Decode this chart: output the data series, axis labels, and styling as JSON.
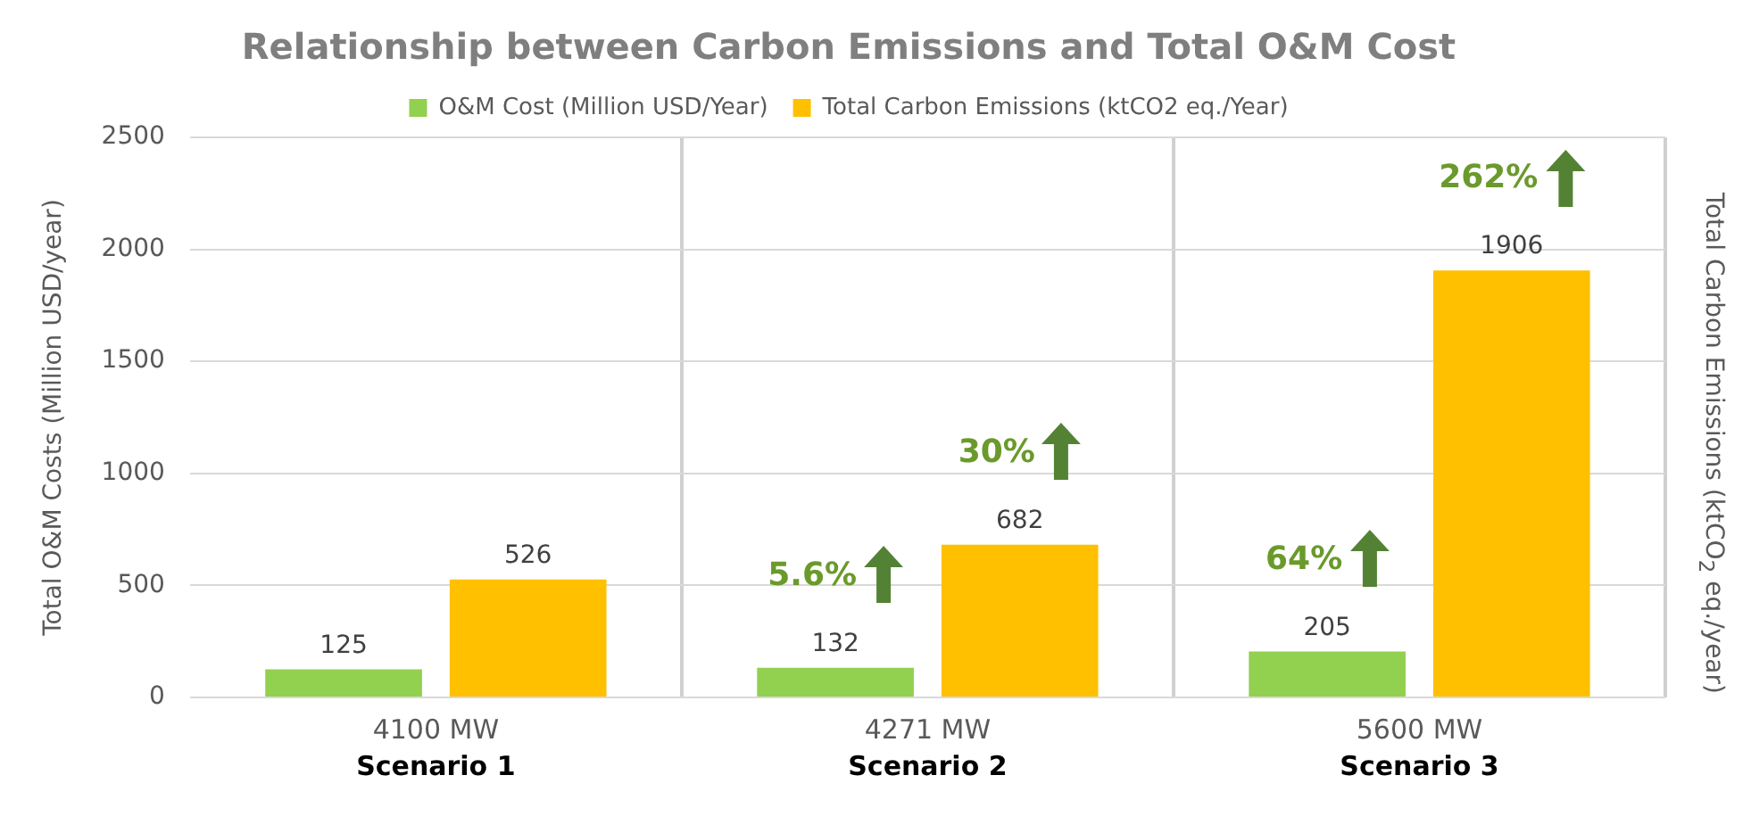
{
  "chart_data": {
    "type": "bar",
    "title": "Relationship between Carbon Emissions and Total O&M Cost",
    "ylabel": "Total O&M Costs (Million USD/year)",
    "y2label": "Total Carbon Emissions (ktCO$_{2}$ eq./year)",
    "categories": [
      "4100 MW",
      "4271 MW",
      "5600 MW"
    ],
    "series": [
      {
        "name": "O&M Cost (Million USD/Year)",
        "color": "#92d050",
        "values": [
          125,
          132,
          205
        ]
      },
      {
        "name": "Total Carbon Emissions (ktCO2 eq./Year)",
        "color": "#ffc000",
        "values": [
          526,
          682,
          1906
        ]
      }
    ],
    "ylim": [
      0,
      2500
    ],
    "yticks": [
      0,
      500,
      1000,
      1500,
      2000,
      2500
    ],
    "grid": true,
    "legend": "top",
    "data_labels": true,
    "annotations": [
      "Scenario 1",
      "Scenario 2",
      "Scenario 3",
      "5.6%",
      "30%",
      "64%",
      "262%"
    ]
  }
}
